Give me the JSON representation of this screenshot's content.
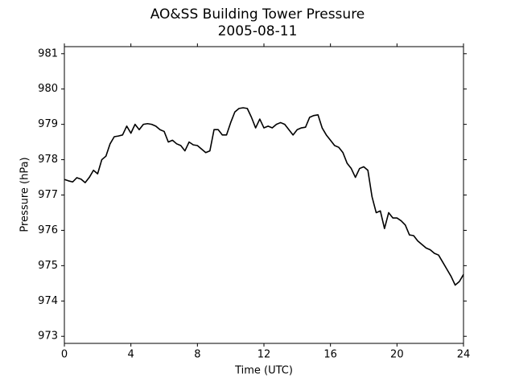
{
  "chart_data": {
    "type": "line",
    "title": "AO&SS Building Tower Pressure",
    "subtitle": "2005-08-11",
    "x_label": "Time (UTC)",
    "y_label": "Pressure (hPa)",
    "color": "#000000",
    "xlim": [
      0,
      24
    ],
    "xticks": [
      0,
      4,
      8,
      12,
      16,
      20,
      24
    ],
    "ylim": [
      972.8,
      981.2
    ],
    "yticks": [
      973,
      974,
      975,
      976,
      977,
      978,
      979,
      980,
      981
    ],
    "grid": false,
    "x": [
      0,
      0.25,
      0.5,
      0.75,
      1,
      1.25,
      1.5,
      1.75,
      2,
      2.25,
      2.5,
      2.75,
      3,
      3.25,
      3.5,
      3.75,
      4,
      4.25,
      4.5,
      4.75,
      5,
      5.25,
      5.5,
      5.75,
      6,
      6.25,
      6.5,
      6.75,
      7,
      7.25,
      7.5,
      7.75,
      8,
      8.25,
      8.5,
      8.75,
      9,
      9.25,
      9.5,
      9.75,
      10,
      10.25,
      10.5,
      10.75,
      11,
      11.25,
      11.5,
      11.75,
      12,
      12.25,
      12.5,
      12.75,
      13,
      13.25,
      13.5,
      13.75,
      14,
      14.25,
      14.5,
      14.75,
      15,
      15.25,
      15.5,
      15.75,
      16,
      16.25,
      16.5,
      16.75,
      17,
      17.25,
      17.5,
      17.75,
      18,
      18.25,
      18.5,
      18.75,
      19,
      19.25,
      19.5,
      19.75,
      20,
      20.25,
      20.5,
      20.75,
      21,
      21.25,
      21.5,
      21.75,
      22,
      22.25,
      22.5,
      22.75,
      23,
      23.25,
      23.5,
      23.75,
      24
    ],
    "values": [
      977.44,
      977.4,
      977.37,
      977.49,
      977.45,
      977.35,
      977.5,
      977.7,
      977.6,
      978.0,
      978.1,
      978.45,
      978.65,
      978.67,
      978.7,
      978.95,
      978.75,
      979.0,
      978.85,
      979.0,
      979.02,
      979.0,
      978.95,
      978.85,
      978.8,
      978.5,
      978.55,
      978.45,
      978.4,
      978.25,
      978.5,
      978.42,
      978.4,
      978.3,
      978.2,
      978.25,
      978.85,
      978.85,
      978.7,
      978.7,
      979.05,
      979.35,
      979.45,
      979.47,
      979.45,
      979.2,
      978.9,
      979.15,
      978.9,
      978.95,
      978.9,
      979.0,
      979.05,
      979.0,
      978.85,
      978.7,
      978.85,
      978.9,
      978.92,
      979.2,
      979.25,
      979.27,
      978.9,
      978.7,
      978.55,
      978.4,
      978.35,
      978.2,
      977.9,
      977.75,
      977.5,
      977.75,
      977.8,
      977.7,
      976.95,
      976.5,
      976.55,
      976.05,
      976.5,
      976.35,
      976.35,
      976.27,
      976.15,
      975.87,
      975.85,
      975.7,
      975.6,
      975.5,
      975.45,
      975.35,
      975.3,
      975.1,
      974.9,
      974.7,
      974.45,
      974.55,
      974.75
    ]
  }
}
